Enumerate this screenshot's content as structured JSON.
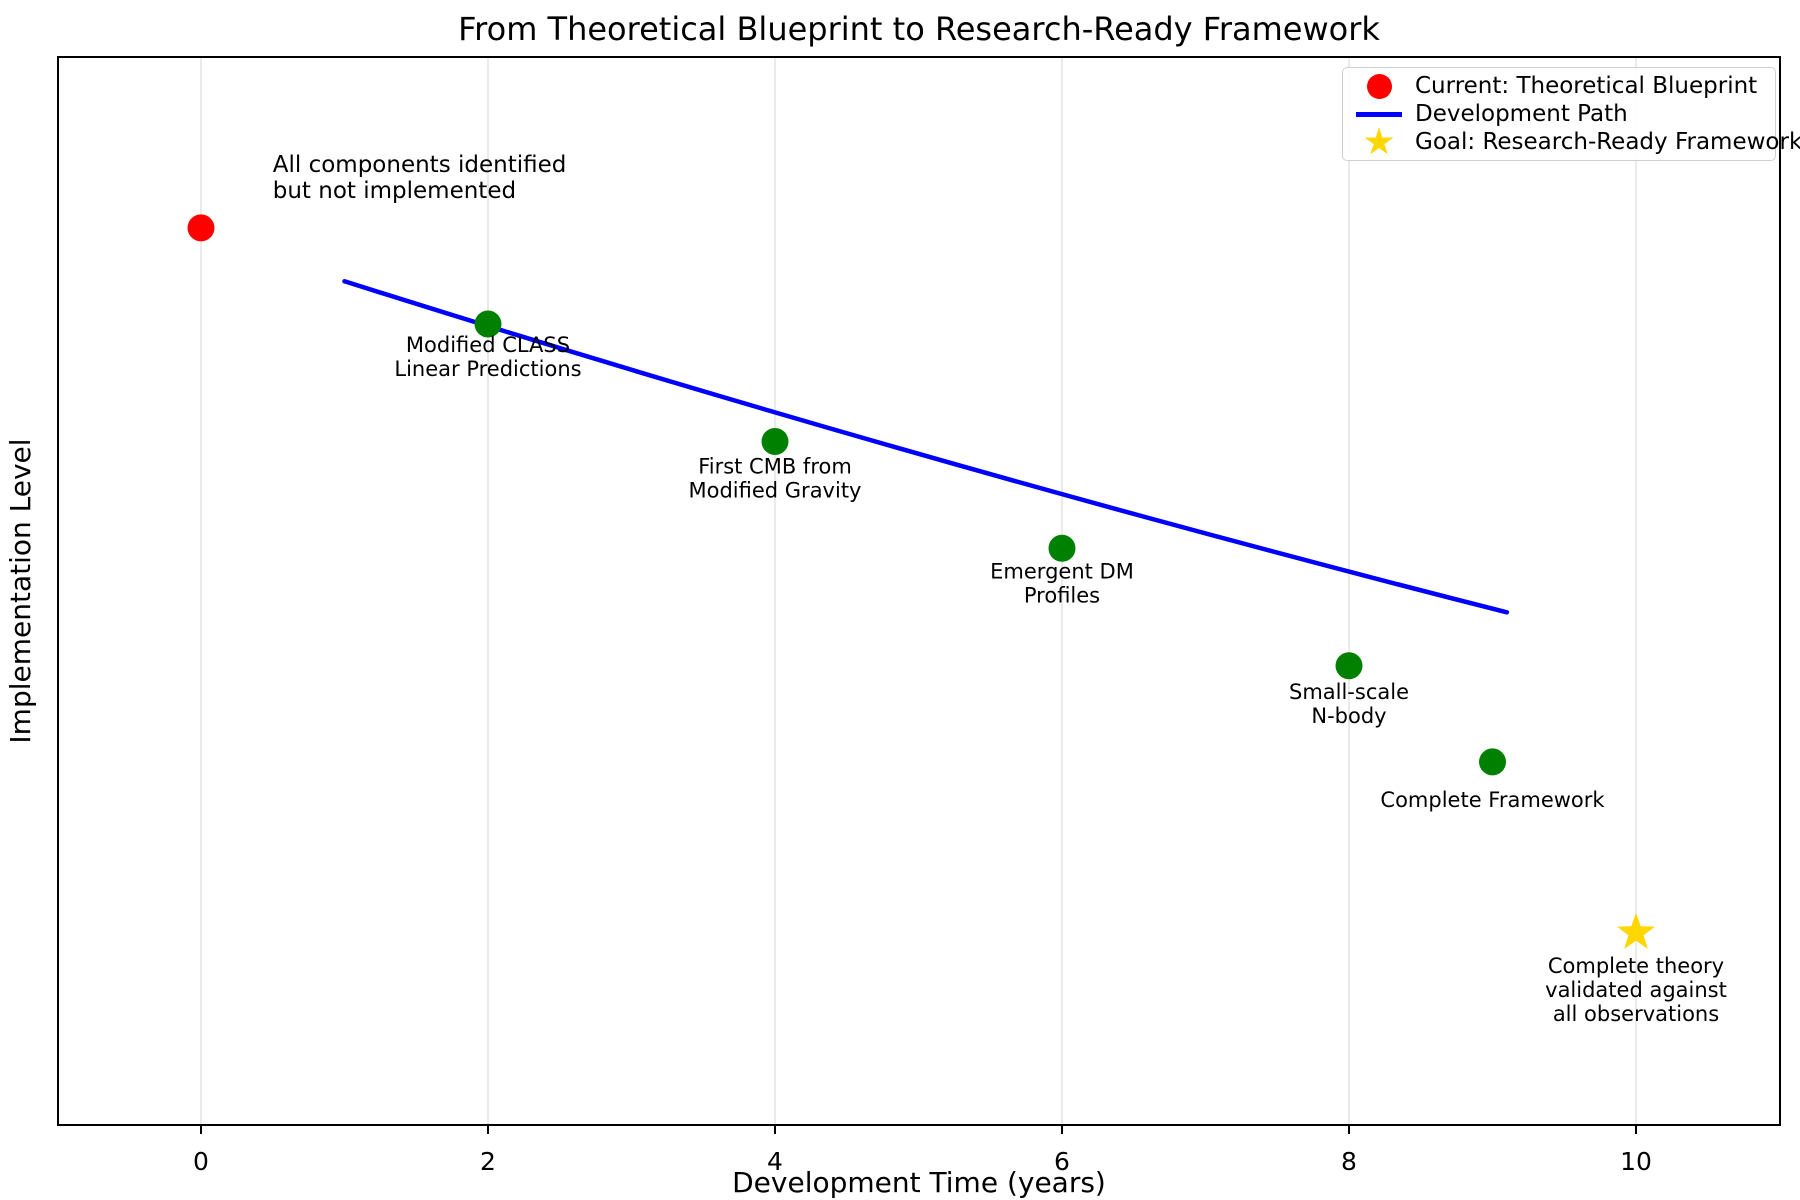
{
  "figure": {
    "title": "From Theoretical Blueprint to Research-Ready Framework",
    "x_axis": {
      "label": "Development Time (years)",
      "tick_labels": [
        "0",
        "2",
        "4",
        "6",
        "8",
        "10"
      ]
    },
    "y_axis": {
      "label": "Implementation Level",
      "tick_labels": []
    }
  },
  "legend": {
    "items": [
      {
        "id": "current",
        "marker": "circle",
        "color": "#ff0000",
        "label": "Current: Theoretical Blueprint"
      },
      {
        "id": "path",
        "marker": "line",
        "color": "#0000ff",
        "label": "Development Path"
      },
      {
        "id": "goal",
        "marker": "star",
        "color": "#ffd700",
        "label": "Goal: Research-Ready Framework"
      }
    ]
  },
  "chart_data": {
    "type": "scatter",
    "title": "From Theoretical Blueprint to Research-Ready Framework",
    "xlabel": "Development Time (years)",
    "ylabel": "Implementation Level",
    "xlim": [
      -1,
      11
    ],
    "ylim": [
      0,
      10
    ],
    "x_ticks": [
      0,
      2,
      4,
      6,
      8,
      10
    ],
    "y_ticks": [],
    "grid": "vertical gridlines only, light gray",
    "legend_position": "upper right",
    "y_note": "y-axis shows no tick labels; y values estimated on a 0-10 scale from pixel positions",
    "points": [
      {
        "name": "current-blueprint",
        "x": 0,
        "y": 8.4,
        "marker": "circle",
        "color": "#ff0000",
        "size": 13.5,
        "label_lines": [],
        "label_dy": 0
      },
      {
        "name": "milestone-modified-class",
        "x": 2,
        "y": 7.5,
        "marker": "circle",
        "color": "#008000",
        "size": 13.5,
        "label_lines": [
          "Modified CLASS",
          "Linear Predictions"
        ],
        "label_dy": 20
      },
      {
        "name": "milestone-first-cmb",
        "x": 4,
        "y": 6.4,
        "marker": "circle",
        "color": "#008000",
        "size": 13.5,
        "label_lines": [
          "First CMB from",
          "Modified Gravity"
        ],
        "label_dy": 24
      },
      {
        "name": "milestone-emergent-dm",
        "x": 6,
        "y": 5.4,
        "marker": "circle",
        "color": "#008000",
        "size": 13.5,
        "label_lines": [
          "Emergent DM",
          "Profiles"
        ],
        "label_dy": 22
      },
      {
        "name": "milestone-small-scale-nbody",
        "x": 8,
        "y": 4.3,
        "marker": "circle",
        "color": "#008000",
        "size": 13.5,
        "label_lines": [
          "Small-scale",
          "N-body"
        ],
        "label_dy": 25
      },
      {
        "name": "milestone-complete-framework",
        "x": 9,
        "y": 3.4,
        "marker": "circle",
        "color": "#008000",
        "size": 13.5,
        "label_lines": [
          "Complete Framework"
        ],
        "label_dy": 37
      },
      {
        "name": "goal-framework",
        "x": 10,
        "y": 1.8,
        "marker": "star",
        "color": "#ffd700",
        "size": 20,
        "label_lines": [
          "Complete theory",
          "validated against",
          "all observations"
        ],
        "label_dy": 32
      }
    ],
    "development_path": {
      "color": "#0000ff",
      "start": {
        "x": 1.0,
        "y": 7.9
      },
      "control": {
        "x": 5.0,
        "y": 6.2
      },
      "end": {
        "x": 9.1,
        "y": 4.8
      }
    },
    "annotation": {
      "lines": [
        "All components identified",
        "but not implemented"
      ],
      "x": 0.5,
      "y": 9.0,
      "ha": "left"
    }
  }
}
